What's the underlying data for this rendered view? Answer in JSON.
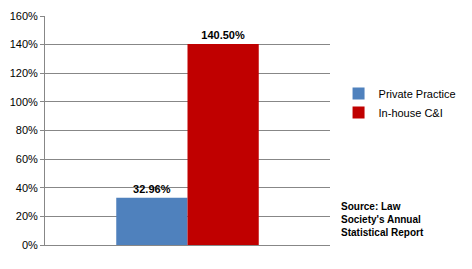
{
  "chart_data": {
    "type": "bar",
    "categories": [
      null
    ],
    "series": [
      {
        "name": "Private Practice",
        "color": "#4f81bd",
        "values": [
          32.96
        ],
        "value_labels": [
          "32.96%"
        ]
      },
      {
        "name": "In-house C&I",
        "color": "#c00000",
        "values": [
          140.5
        ],
        "value_labels": [
          "140.50%"
        ]
      }
    ],
    "ylim": [
      0,
      160
    ],
    "yticks": [
      {
        "value": 0,
        "label": "0%"
      },
      {
        "value": 20,
        "label": "20%"
      },
      {
        "value": 40,
        "label": "40%"
      },
      {
        "value": 60,
        "label": "60%"
      },
      {
        "value": 80,
        "label": "80%"
      },
      {
        "value": 100,
        "label": "100%"
      },
      {
        "value": 120,
        "label": "120%"
      },
      {
        "value": 140,
        "label": "140%"
      },
      {
        "value": 160,
        "label": "160%"
      }
    ],
    "grid": true,
    "legend": "right",
    "data_labels": true,
    "tick_labels": "y",
    "annotations": [
      "Source: Law",
      "Society's Annual",
      "Statistical Report"
    ]
  }
}
